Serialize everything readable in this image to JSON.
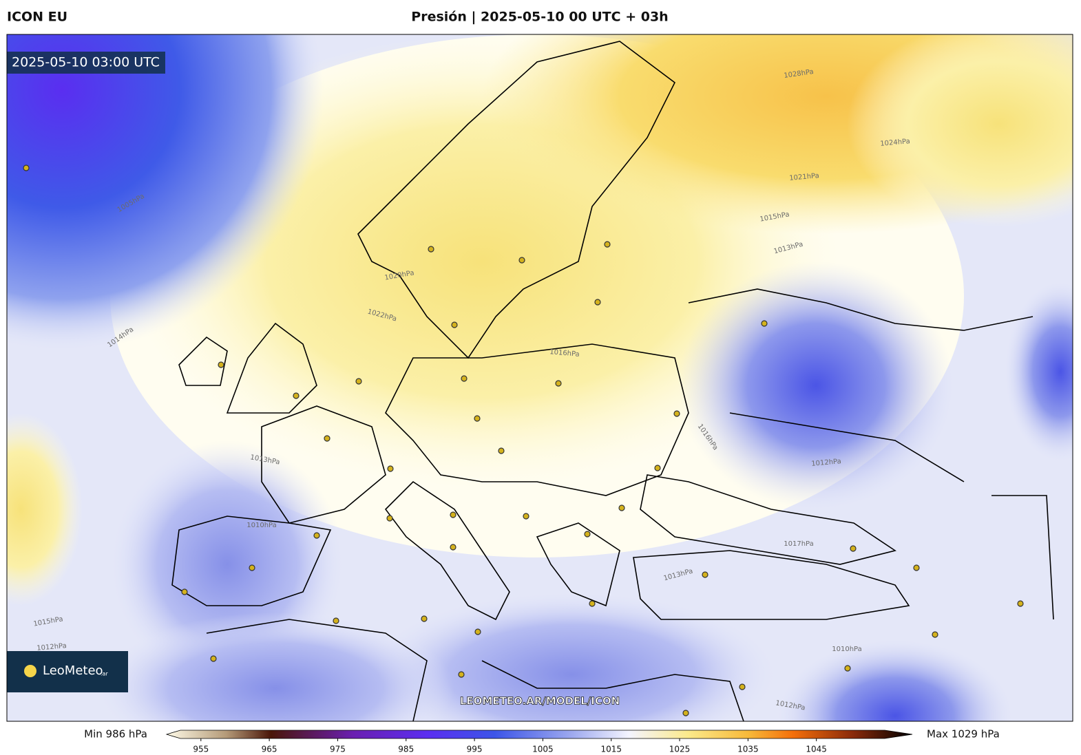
{
  "header": {
    "model": "ICON EU",
    "title": "Presión | 2025-05-10 00 UTC + 03h"
  },
  "map": {
    "valid_time": "2025-05-10 03:00 UTC",
    "watermark": "LEOMETEO.AR/MODEL/ICON",
    "logo": {
      "brand": "LeoMeteo",
      "suffix": ".ar"
    },
    "isobar_labels": [
      "1028hPa",
      "1024hPa",
      "1021hPa",
      "1015hPa",
      "1013hPa",
      "1016hPa",
      "1020hPa",
      "1022hPa",
      "1017hPa",
      "1010hPa",
      "1012hPa",
      "1013hPa",
      "1014hPa",
      "1005hPa",
      "1012hPa",
      "1015hPa",
      "1010hPa",
      "1012hPa",
      "1013hPa",
      "1016hPa"
    ]
  },
  "colorbar": {
    "min_label": "Min 986 hPa",
    "max_label": "Max 1029 hPa",
    "range": [
      952,
      1055
    ],
    "ticks": [
      955,
      965,
      975,
      985,
      995,
      1005,
      1015,
      1025,
      1035,
      1045
    ]
  }
}
